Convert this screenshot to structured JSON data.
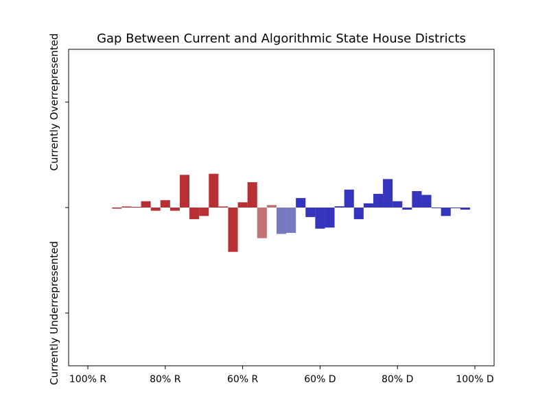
{
  "chart_data": {
    "type": "bar",
    "title": "Gap Between Current and Algorithmic State House Districts",
    "xlabel": "",
    "ylabel_top": "Currently Overrepresented",
    "ylabel_bottom": "Currently Underrepresented",
    "xlim": [
      -100,
      100
    ],
    "ylim": [
      -7.5,
      7.5
    ],
    "y_ticks": [
      -5,
      0,
      5
    ],
    "x_ticks": [
      {
        "value": -100,
        "label": "100% R"
      },
      {
        "value": -60,
        "label": "80% R"
      },
      {
        "value": -20,
        "label": "60% R"
      },
      {
        "value": 20,
        "label": "60% D"
      },
      {
        "value": 60,
        "label": "80% D"
      },
      {
        "value": 100,
        "label": "100% D"
      }
    ],
    "bin_width": 5,
    "grid": false,
    "colors": {
      "republican": "#b83033",
      "republican_light": "#c07275",
      "democrat_light": "#787ac0",
      "democrat": "#3434bc"
    },
    "bars": [
      {
        "x": -85,
        "value": -0.05,
        "party": "republican"
      },
      {
        "x": -80,
        "value": 0.05,
        "party": "republican"
      },
      {
        "x": -75,
        "value": 0.02,
        "party": "republican"
      },
      {
        "x": -70,
        "value": 0.3,
        "party": "republican"
      },
      {
        "x": -65,
        "value": -0.15,
        "party": "republican"
      },
      {
        "x": -60,
        "value": 0.35,
        "party": "republican"
      },
      {
        "x": -55,
        "value": -0.15,
        "party": "republican"
      },
      {
        "x": -50,
        "value": 1.55,
        "party": "republican"
      },
      {
        "x": -45,
        "value": -0.55,
        "party": "republican"
      },
      {
        "x": -40,
        "value": -0.4,
        "party": "republican"
      },
      {
        "x": -35,
        "value": 1.6,
        "party": "republican"
      },
      {
        "x": -30,
        "value": 0.05,
        "party": "republican"
      },
      {
        "x": -25,
        "value": -2.1,
        "party": "republican"
      },
      {
        "x": -20,
        "value": 0.25,
        "party": "republican"
      },
      {
        "x": -15,
        "value": 1.2,
        "party": "republican"
      },
      {
        "x": -10,
        "value": -1.45,
        "party": "republican_light"
      },
      {
        "x": -5,
        "value": 0.12,
        "party": "republican_light"
      },
      {
        "x": 0,
        "value": -1.25,
        "party": "democrat_light"
      },
      {
        "x": 5,
        "value": -1.2,
        "party": "democrat_light"
      },
      {
        "x": 10,
        "value": 0.45,
        "party": "democrat"
      },
      {
        "x": 15,
        "value": -0.45,
        "party": "democrat"
      },
      {
        "x": 20,
        "value": -1.0,
        "party": "democrat"
      },
      {
        "x": 25,
        "value": -0.95,
        "party": "democrat"
      },
      {
        "x": 30,
        "value": 0.06,
        "party": "democrat"
      },
      {
        "x": 35,
        "value": 0.85,
        "party": "democrat"
      },
      {
        "x": 40,
        "value": -0.55,
        "party": "democrat"
      },
      {
        "x": 45,
        "value": 0.2,
        "party": "democrat"
      },
      {
        "x": 50,
        "value": 0.65,
        "party": "democrat"
      },
      {
        "x": 55,
        "value": 1.35,
        "party": "democrat"
      },
      {
        "x": 60,
        "value": 0.3,
        "party": "democrat"
      },
      {
        "x": 65,
        "value": -0.1,
        "party": "democrat"
      },
      {
        "x": 70,
        "value": 0.78,
        "party": "democrat"
      },
      {
        "x": 75,
        "value": 0.6,
        "party": "democrat"
      },
      {
        "x": 80,
        "value": -0.02,
        "party": "democrat"
      },
      {
        "x": 85,
        "value": -0.4,
        "party": "democrat"
      },
      {
        "x": 90,
        "value": -0.02,
        "party": "democrat"
      },
      {
        "x": 95,
        "value": -0.1,
        "party": "democrat"
      }
    ]
  }
}
